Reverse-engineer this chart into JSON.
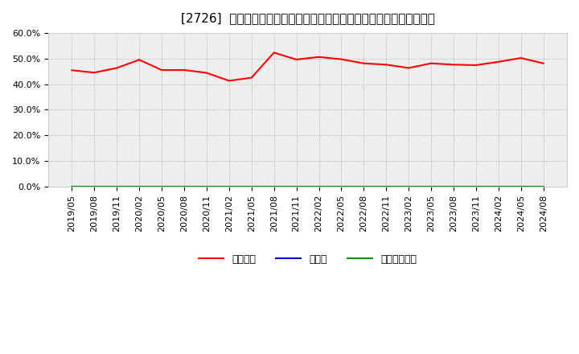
{
  "title": "[2726]  自己資本、のれん、繰延税金資産の総資産に対する比率の推移",
  "x_labels": [
    "2019/05",
    "2019/08",
    "2019/11",
    "2020/02",
    "2020/05",
    "2020/08",
    "2020/11",
    "2021/02",
    "2021/05",
    "2021/08",
    "2021/11",
    "2022/02",
    "2022/05",
    "2022/08",
    "2022/11",
    "2023/02",
    "2023/05",
    "2023/08",
    "2023/11",
    "2024/02",
    "2024/05",
    "2024/08"
  ],
  "equity_ratio": [
    0.454,
    0.445,
    0.463,
    0.495,
    0.455,
    0.455,
    0.444,
    0.413,
    0.425,
    0.523,
    0.496,
    0.506,
    0.497,
    0.481,
    0.476,
    0.463,
    0.481,
    0.476,
    0.474,
    0.487,
    0.502,
    0.481
  ],
  "noren_ratio": [
    0.0,
    0.0,
    0.0,
    0.0,
    0.0,
    0.0,
    0.0,
    0.0,
    0.0,
    0.0,
    0.0,
    0.0,
    0.0,
    0.0,
    0.0,
    0.0,
    0.0,
    0.0,
    0.0,
    0.0,
    0.0,
    0.0
  ],
  "deferred_ratio": [
    0.0,
    0.0,
    0.0,
    0.0,
    0.0,
    0.0,
    0.0,
    0.0,
    0.0,
    0.0,
    0.0,
    0.0,
    0.0,
    0.0,
    0.0,
    0.0,
    0.0,
    0.0,
    0.0,
    0.0,
    0.0,
    0.0
  ],
  "line_colors": [
    "#ff0000",
    "#0000cc",
    "#009900"
  ],
  "legend_labels": [
    "自己資本",
    "のれん",
    "繰延税金資産"
  ],
  "ylim": [
    0.0,
    0.6
  ],
  "yticks": [
    0.0,
    0.1,
    0.2,
    0.3,
    0.4,
    0.5,
    0.6
  ],
  "bg_color": "#ffffff",
  "plot_bg_color": "#eeeeee",
  "grid_color": "#aaaaaa",
  "title_fontsize": 11,
  "axis_fontsize": 8,
  "legend_fontsize": 9
}
